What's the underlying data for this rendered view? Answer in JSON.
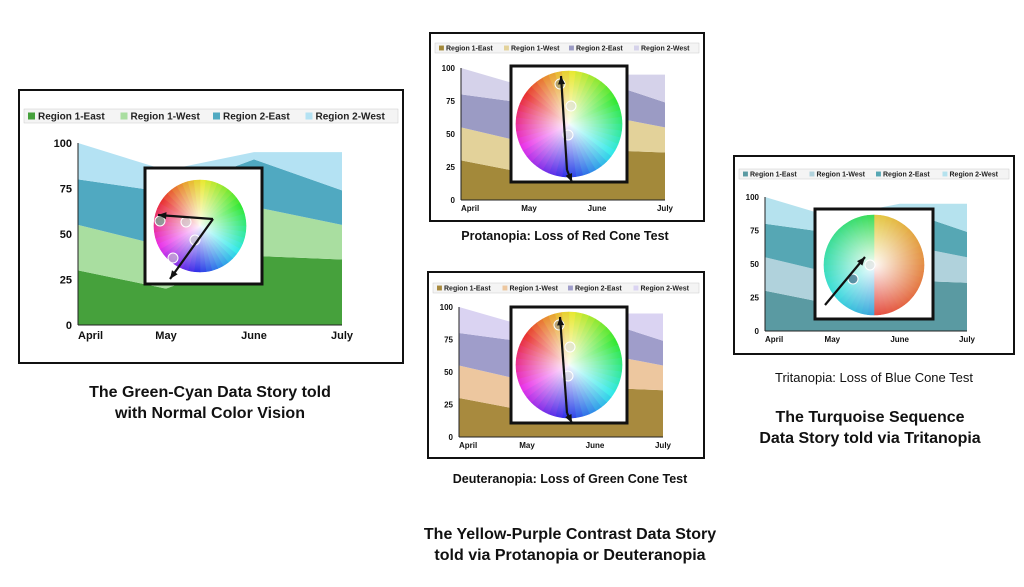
{
  "colors": {
    "normal": [
      "#46a13c",
      "#a9dea0",
      "#50a9c1",
      "#b4e2f3"
    ],
    "protanopia": [
      "#a3893a",
      "#e3d29a",
      "#9b9bc4",
      "#d5d2ea"
    ],
    "deuteranopia": [
      "#a88a3e",
      "#edc79f",
      "#9f9dca",
      "#dad3f2"
    ],
    "tritanopia": [
      "#5a9aa2",
      "#b0d2dc",
      "#56a7b4",
      "#b5e2ee"
    ]
  },
  "chart_data": [
    {
      "type": "area",
      "variant": "normal",
      "categories": [
        "April",
        "May",
        "June",
        "July"
      ],
      "ylim": [
        0,
        100
      ],
      "yticks": [
        0,
        25,
        50,
        75,
        100
      ],
      "series": [
        {
          "name": "Region 1-East",
          "values": [
            30,
            20,
            38,
            36
          ]
        },
        {
          "name": "Region 1-West",
          "values": [
            25,
            23,
            27,
            19
          ]
        },
        {
          "name": "Region 2-East",
          "values": [
            25,
            30,
            26,
            19
          ]
        },
        {
          "name": "Region 2-West",
          "values": [
            20,
            12,
            4,
            21
          ]
        }
      ],
      "legend": "top"
    },
    {
      "type": "area",
      "variant": "protanopia",
      "categories": [
        "April",
        "May",
        "June",
        "July"
      ],
      "ylim": [
        0,
        100
      ],
      "yticks": [
        0,
        25,
        50,
        75,
        100
      ],
      "series": [
        {
          "name": "Region 1-East",
          "values": [
            30,
            20,
            38,
            36
          ]
        },
        {
          "name": "Region 1-West",
          "values": [
            25,
            23,
            27,
            19
          ]
        },
        {
          "name": "Region 2-East",
          "values": [
            25,
            30,
            26,
            19
          ]
        },
        {
          "name": "Region 2-West",
          "values": [
            20,
            12,
            4,
            21
          ]
        }
      ],
      "legend": "top"
    },
    {
      "type": "area",
      "variant": "deuteranopia",
      "categories": [
        "April",
        "May",
        "June",
        "July"
      ],
      "ylim": [
        0,
        100
      ],
      "yticks": [
        0,
        25,
        50,
        75,
        100
      ],
      "series": [
        {
          "name": "Region 1-East",
          "values": [
            30,
            20,
            38,
            36
          ]
        },
        {
          "name": "Region 1-West",
          "values": [
            25,
            23,
            27,
            19
          ]
        },
        {
          "name": "Region 2-East",
          "values": [
            25,
            30,
            26,
            19
          ]
        },
        {
          "name": "Region 2-West",
          "values": [
            20,
            12,
            4,
            21
          ]
        }
      ],
      "legend": "top"
    },
    {
      "type": "area",
      "variant": "tritanopia",
      "categories": [
        "April",
        "May",
        "June",
        "July"
      ],
      "ylim": [
        0,
        100
      ],
      "yticks": [
        0,
        25,
        50,
        75,
        100
      ],
      "series": [
        {
          "name": "Region 1-East",
          "values": [
            30,
            20,
            38,
            36
          ]
        },
        {
          "name": "Region 1-West",
          "values": [
            25,
            23,
            27,
            19
          ]
        },
        {
          "name": "Region 2-East",
          "values": [
            25,
            30,
            26,
            19
          ]
        },
        {
          "name": "Region 2-West",
          "values": [
            20,
            12,
            4,
            21
          ]
        }
      ],
      "legend": "top"
    }
  ],
  "captions": {
    "normal": [
      "The Green-Cyan Data Story told",
      "with Normal Color Vision"
    ],
    "protanopia": "Protanopia:  Loss of Red Cone Test",
    "deuteranopia": "Deuteranopia:  Loss of Green Cone Test",
    "tritanopia": "Tritanopia:  Loss of Blue Cone Test",
    "turquoise": [
      "The Turquoise Sequence",
      "Data Story told via Tritanopia"
    ],
    "yellow_purple": [
      "The Yellow-Purple Contrast Data Story",
      "told via Protanopia or Deuteranopia"
    ]
  }
}
